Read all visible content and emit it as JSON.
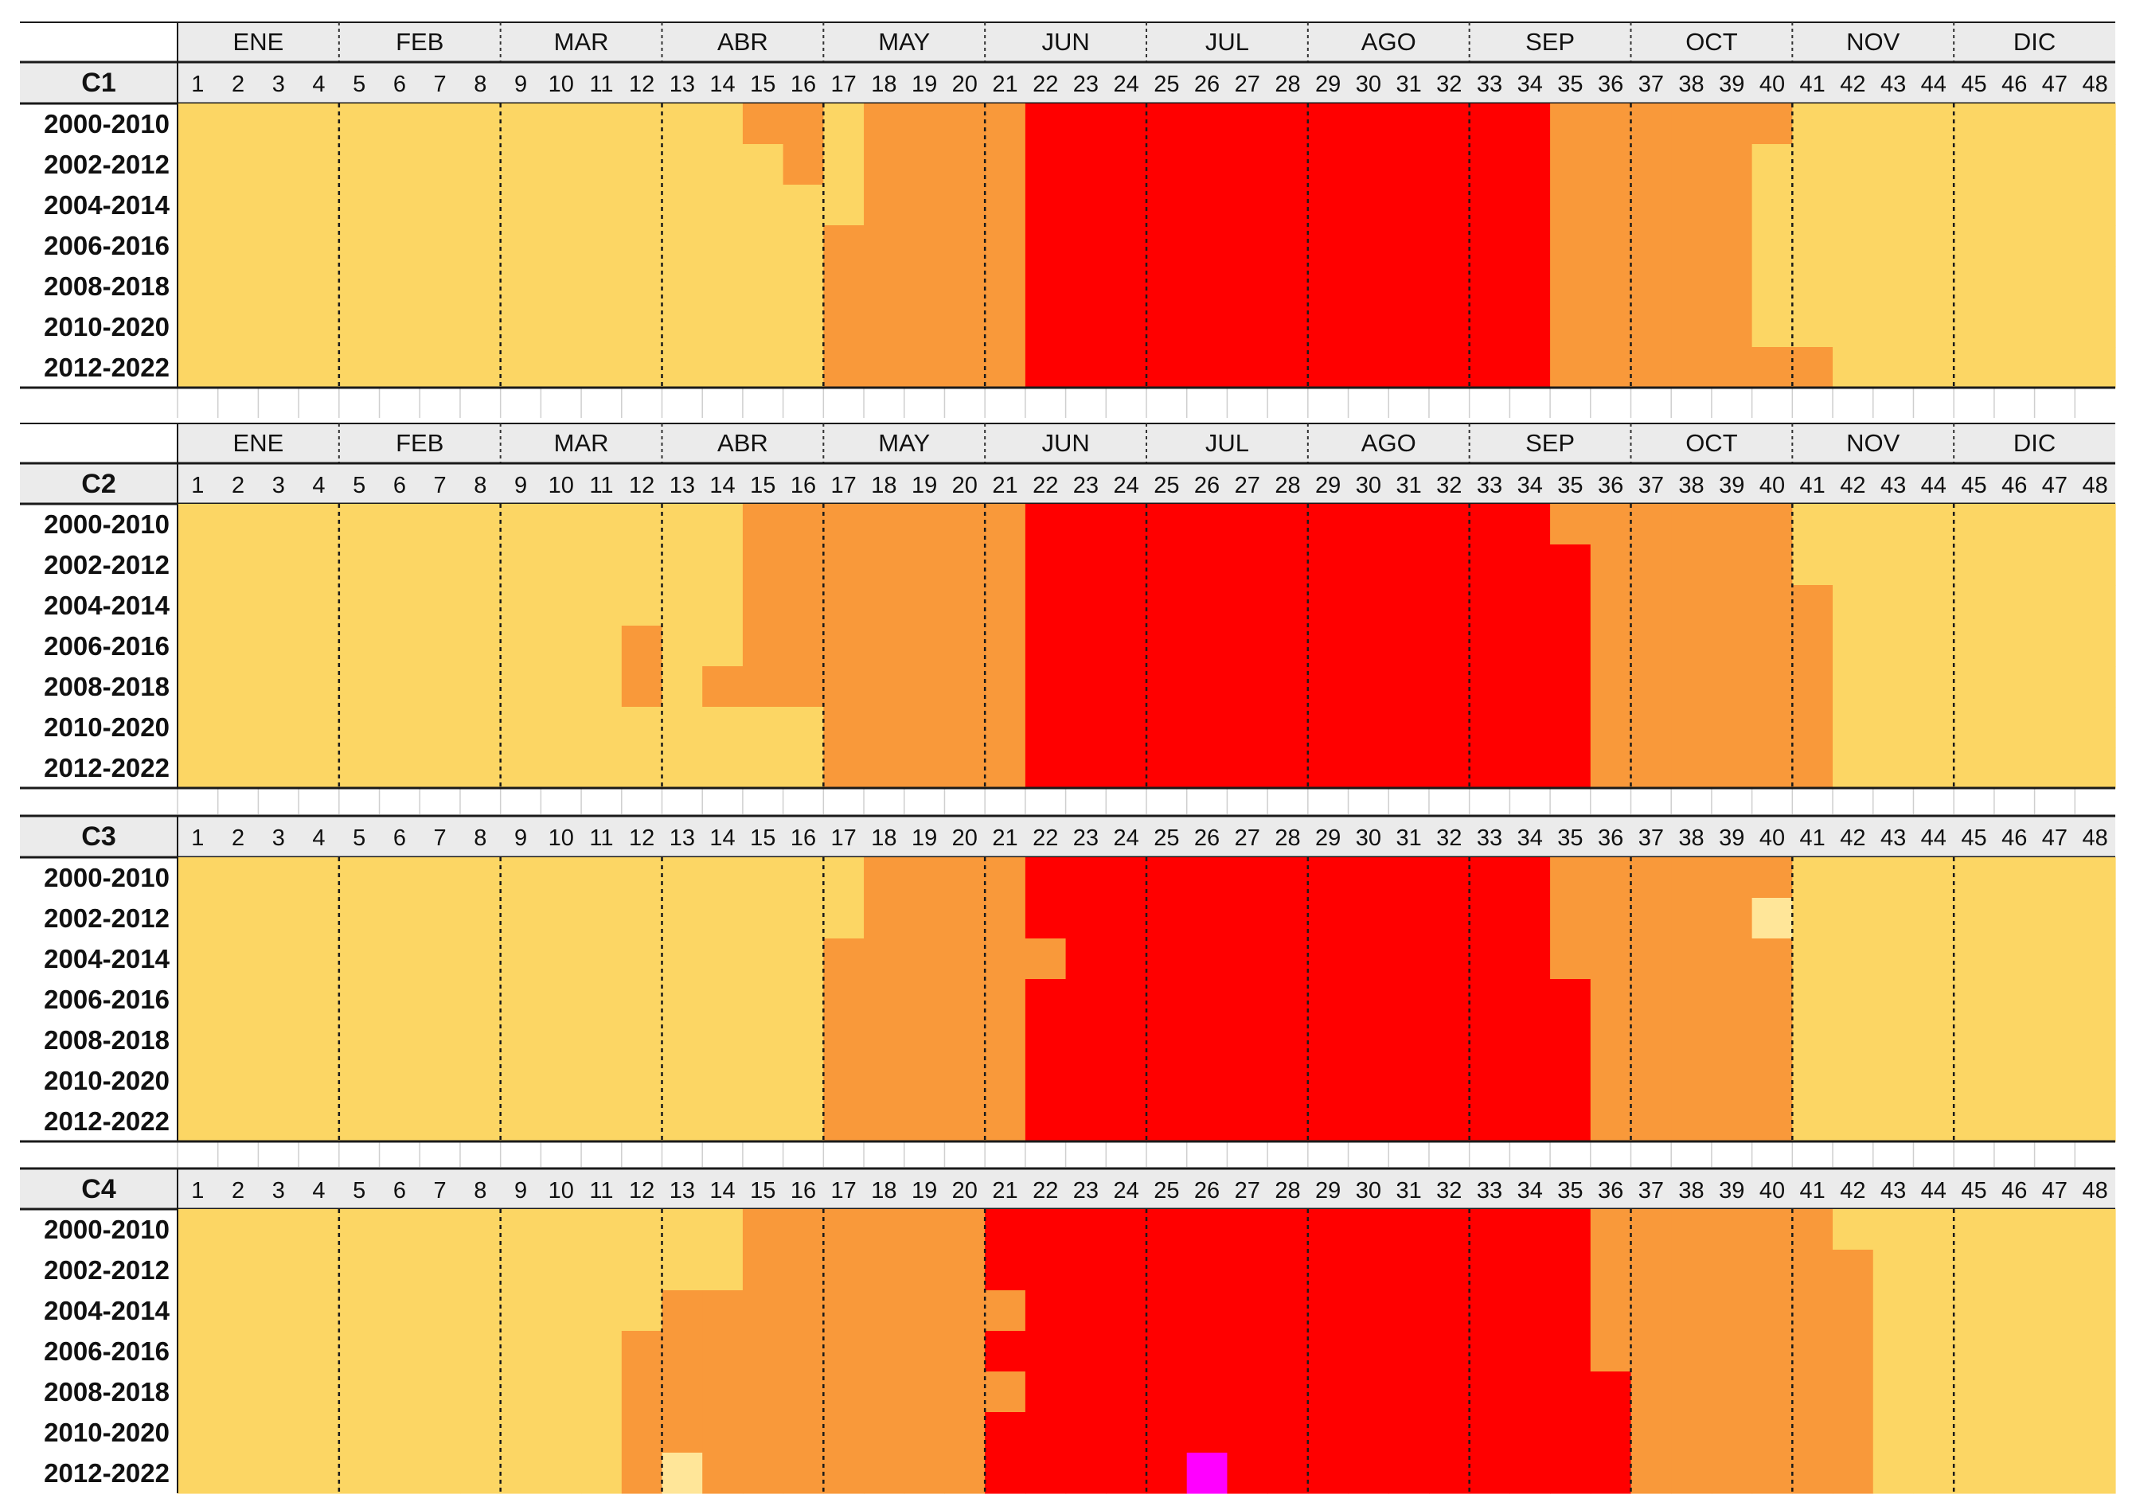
{
  "chart_data": {
    "type": "heatmap",
    "months": [
      "ENE",
      "FEB",
      "MAR",
      "ABR",
      "MAY",
      "JUN",
      "JUL",
      "AGO",
      "SEP",
      "OCT",
      "NOV",
      "DIC"
    ],
    "weeks": [
      "1",
      "2",
      "3",
      "4",
      "5",
      "6",
      "7",
      "8",
      "9",
      "10",
      "11",
      "12",
      "13",
      "14",
      "15",
      "16",
      "17",
      "18",
      "19",
      "20",
      "21",
      "22",
      "23",
      "24",
      "25",
      "26",
      "27",
      "28",
      "29",
      "30",
      "31",
      "32",
      "33",
      "34",
      "35",
      "36",
      "37",
      "38",
      "39",
      "40",
      "41",
      "42",
      "43",
      "44",
      "45",
      "46",
      "47",
      "48"
    ],
    "periods": [
      "2000-2010",
      "2002-2012",
      "2004-2014",
      "2006-2016",
      "2008-2018",
      "2010-2020",
      "2012-2022"
    ],
    "level_colors": {
      "0": "#FFE699",
      "1": "#FCD664",
      "2": "#F9993A",
      "3": "#FF0000",
      "4": "#FF00FF"
    },
    "panels": [
      {
        "label": "C1",
        "show_months": true,
        "ranges": [
          [
            [
              1,
              14,
              1
            ],
            [
              15,
              16,
              2
            ],
            [
              17,
              17,
              1
            ],
            [
              18,
              21,
              2
            ],
            [
              22,
              34,
              3
            ],
            [
              35,
              40,
              2
            ],
            [
              41,
              48,
              1
            ]
          ],
          [
            [
              1,
              15,
              1
            ],
            [
              16,
              16,
              2
            ],
            [
              17,
              17,
              1
            ],
            [
              18,
              21,
              2
            ],
            [
              22,
              34,
              3
            ],
            [
              35,
              39,
              2
            ],
            [
              40,
              48,
              1
            ]
          ],
          [
            [
              1,
              17,
              1
            ],
            [
              18,
              21,
              2
            ],
            [
              22,
              34,
              3
            ],
            [
              35,
              39,
              2
            ],
            [
              40,
              48,
              1
            ]
          ],
          [
            [
              1,
              16,
              1
            ],
            [
              17,
              21,
              2
            ],
            [
              22,
              34,
              3
            ],
            [
              35,
              39,
              2
            ],
            [
              40,
              48,
              1
            ]
          ],
          [
            [
              1,
              16,
              1
            ],
            [
              17,
              21,
              2
            ],
            [
              22,
              34,
              3
            ],
            [
              35,
              39,
              2
            ],
            [
              40,
              48,
              1
            ]
          ],
          [
            [
              1,
              16,
              1
            ],
            [
              17,
              21,
              2
            ],
            [
              22,
              34,
              3
            ],
            [
              35,
              39,
              2
            ],
            [
              40,
              48,
              1
            ]
          ],
          [
            [
              1,
              16,
              1
            ],
            [
              17,
              21,
              2
            ],
            [
              22,
              34,
              3
            ],
            [
              35,
              41,
              2
            ],
            [
              42,
              48,
              1
            ]
          ]
        ]
      },
      {
        "label": "C2",
        "show_months": true,
        "ranges": [
          [
            [
              1,
              14,
              1
            ],
            [
              15,
              21,
              2
            ],
            [
              22,
              34,
              3
            ],
            [
              35,
              40,
              2
            ],
            [
              41,
              48,
              1
            ]
          ],
          [
            [
              1,
              14,
              1
            ],
            [
              15,
              21,
              2
            ],
            [
              22,
              35,
              3
            ],
            [
              36,
              40,
              2
            ],
            [
              41,
              48,
              1
            ]
          ],
          [
            [
              1,
              14,
              1
            ],
            [
              15,
              21,
              2
            ],
            [
              22,
              35,
              3
            ],
            [
              36,
              41,
              2
            ],
            [
              42,
              48,
              1
            ]
          ],
          [
            [
              1,
              11,
              1
            ],
            [
              12,
              12,
              2
            ],
            [
              13,
              14,
              1
            ],
            [
              15,
              21,
              2
            ],
            [
              22,
              35,
              3
            ],
            [
              36,
              41,
              2
            ],
            [
              42,
              48,
              1
            ]
          ],
          [
            [
              1,
              11,
              1
            ],
            [
              12,
              12,
              2
            ],
            [
              13,
              13,
              1
            ],
            [
              14,
              21,
              2
            ],
            [
              22,
              35,
              3
            ],
            [
              36,
              41,
              2
            ],
            [
              42,
              48,
              1
            ]
          ],
          [
            [
              1,
              16,
              1
            ],
            [
              17,
              21,
              2
            ],
            [
              22,
              35,
              3
            ],
            [
              36,
              41,
              2
            ],
            [
              42,
              48,
              1
            ]
          ],
          [
            [
              1,
              16,
              1
            ],
            [
              17,
              21,
              2
            ],
            [
              22,
              35,
              3
            ],
            [
              36,
              41,
              2
            ],
            [
              42,
              48,
              1
            ]
          ]
        ]
      },
      {
        "label": "C3",
        "show_months": false,
        "ranges": [
          [
            [
              1,
              17,
              1
            ],
            [
              18,
              21,
              2
            ],
            [
              22,
              34,
              3
            ],
            [
              35,
              40,
              2
            ],
            [
              41,
              48,
              1
            ]
          ],
          [
            [
              1,
              17,
              1
            ],
            [
              18,
              21,
              2
            ],
            [
              22,
              34,
              3
            ],
            [
              35,
              39,
              2
            ],
            [
              40,
              40,
              0
            ],
            [
              41,
              48,
              1
            ]
          ],
          [
            [
              1,
              16,
              1
            ],
            [
              17,
              22,
              2
            ],
            [
              23,
              34,
              3
            ],
            [
              35,
              40,
              2
            ],
            [
              41,
              48,
              1
            ]
          ],
          [
            [
              1,
              16,
              1
            ],
            [
              17,
              21,
              2
            ],
            [
              22,
              35,
              3
            ],
            [
              36,
              40,
              2
            ],
            [
              41,
              48,
              1
            ]
          ],
          [
            [
              1,
              16,
              1
            ],
            [
              17,
              21,
              2
            ],
            [
              22,
              35,
              3
            ],
            [
              36,
              40,
              2
            ],
            [
              41,
              48,
              1
            ]
          ],
          [
            [
              1,
              16,
              1
            ],
            [
              17,
              21,
              2
            ],
            [
              22,
              35,
              3
            ],
            [
              36,
              40,
              2
            ],
            [
              41,
              48,
              1
            ]
          ],
          [
            [
              1,
              16,
              1
            ],
            [
              17,
              21,
              2
            ],
            [
              22,
              35,
              3
            ],
            [
              36,
              40,
              2
            ],
            [
              41,
              48,
              1
            ]
          ]
        ]
      },
      {
        "label": "C4",
        "show_months": false,
        "ranges": [
          [
            [
              1,
              14,
              1
            ],
            [
              15,
              20,
              2
            ],
            [
              21,
              35,
              3
            ],
            [
              36,
              41,
              2
            ],
            [
              42,
              48,
              1
            ]
          ],
          [
            [
              1,
              14,
              1
            ],
            [
              15,
              20,
              2
            ],
            [
              21,
              35,
              3
            ],
            [
              36,
              42,
              2
            ],
            [
              43,
              48,
              1
            ]
          ],
          [
            [
              1,
              12,
              1
            ],
            [
              13,
              20,
              2
            ],
            [
              21,
              21,
              2
            ],
            [
              22,
              35,
              3
            ],
            [
              36,
              42,
              2
            ],
            [
              43,
              48,
              1
            ]
          ],
          [
            [
              1,
              11,
              1
            ],
            [
              12,
              20,
              2
            ],
            [
              21,
              35,
              3
            ],
            [
              36,
              42,
              2
            ],
            [
              43,
              48,
              1
            ]
          ],
          [
            [
              1,
              11,
              1
            ],
            [
              12,
              20,
              2
            ],
            [
              21,
              21,
              2
            ],
            [
              22,
              36,
              3
            ],
            [
              37,
              42,
              2
            ],
            [
              43,
              48,
              1
            ]
          ],
          [
            [
              1,
              11,
              1
            ],
            [
              12,
              20,
              2
            ],
            [
              21,
              36,
              3
            ],
            [
              37,
              42,
              2
            ],
            [
              43,
              48,
              1
            ]
          ],
          [
            [
              1,
              11,
              1
            ],
            [
              12,
              12,
              2
            ],
            [
              13,
              13,
              0
            ],
            [
              14,
              20,
              2
            ],
            [
              21,
              25,
              3
            ],
            [
              26,
              26,
              4
            ],
            [
              27,
              36,
              3
            ],
            [
              37,
              42,
              2
            ],
            [
              43,
              48,
              1
            ]
          ]
        ]
      }
    ]
  }
}
